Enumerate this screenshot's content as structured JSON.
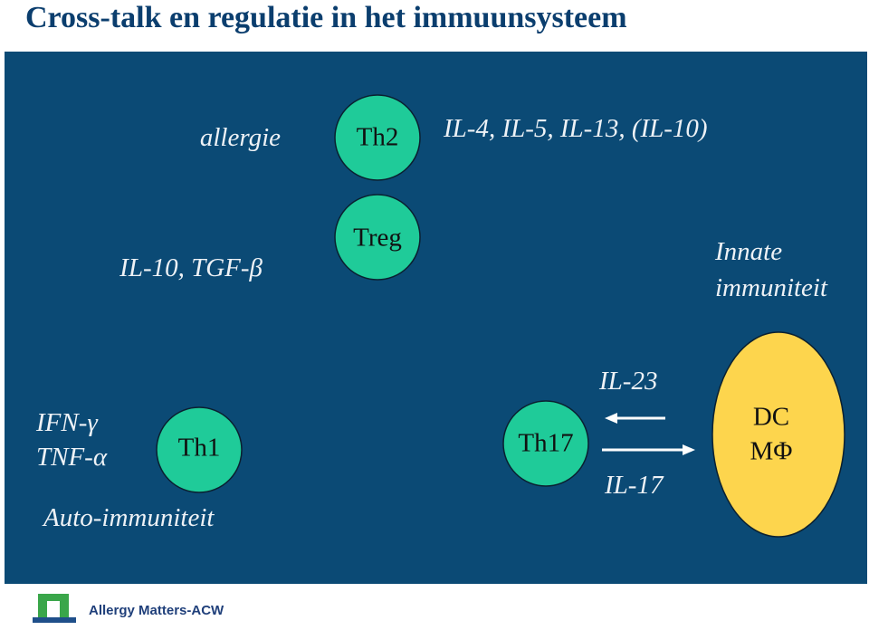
{
  "header": {
    "title": "Cross-talk en regulatie in het immuunsysteem"
  },
  "nodes": [
    {
      "label": "Th2"
    },
    {
      "label": "Treg"
    },
    {
      "label": "Th1"
    },
    {
      "label": "Th17"
    },
    {
      "lines": [
        "DC",
        "MΦ"
      ]
    }
  ],
  "labels": [
    {
      "text": "allergie"
    },
    {
      "text": "IL-4, IL-5, IL-13, (IL-10)"
    },
    {
      "text": "IL-10, TGF-β"
    },
    {
      "lines": [
        "Innate",
        "immuniteit"
      ]
    },
    {
      "lines": [
        "IFN-γ",
        "TNF-α"
      ]
    },
    {
      "text": "Auto-immuniteit"
    },
    {
      "text": "IL-23"
    },
    {
      "text": "IL-17"
    }
  ],
  "footer": {
    "brand": "Allergy Matters-ACW"
  }
}
